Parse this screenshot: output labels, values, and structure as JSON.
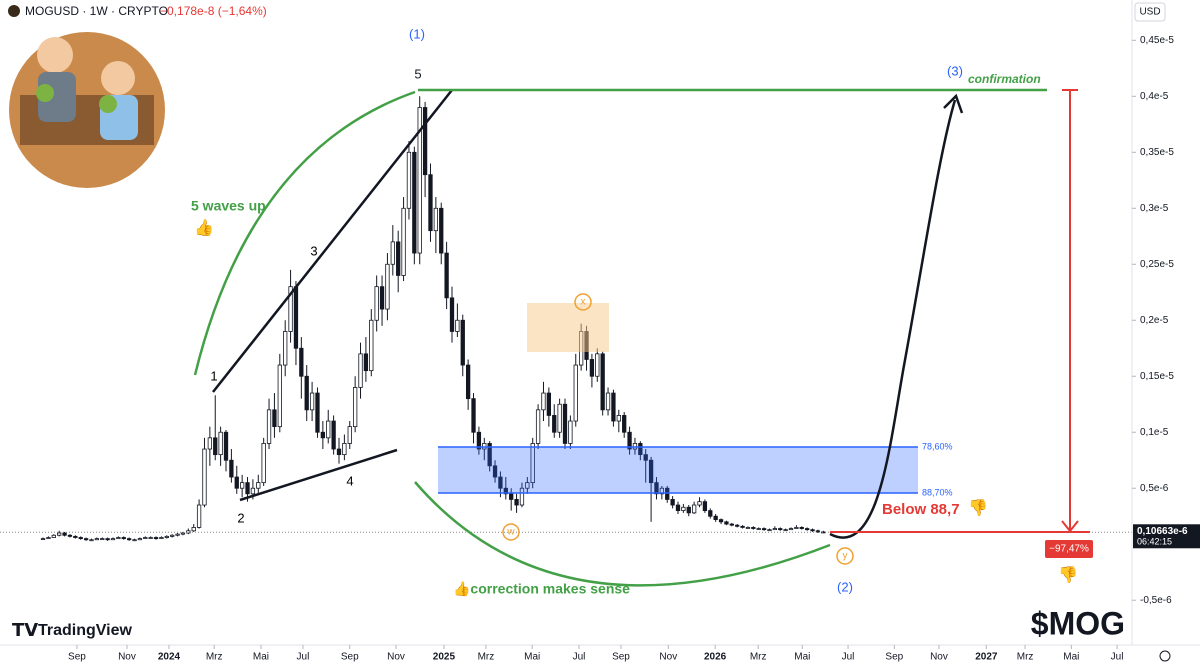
{
  "header": {
    "symbol": "MOGUSD · 1W · CRYPTO",
    "change": "−0,178e-8 (−1,64%)",
    "currency": "USD",
    "brand": "TradingView"
  },
  "chart_data": {
    "type": "candlestick",
    "up_color": "#ffffff",
    "down_color": "#131722",
    "grid": false,
    "ylim": [
      -9e-07,
      4.86e-06
    ],
    "yticks": [
      {
        "value": 4.5e-06,
        "label": "0,45e-5"
      },
      {
        "value": 4e-06,
        "label": "0,4e-5"
      },
      {
        "value": 3.5e-06,
        "label": "0,35e-5"
      },
      {
        "value": 3e-06,
        "label": "0,3e-5"
      },
      {
        "value": 2.5e-06,
        "label": "0,25e-5"
      },
      {
        "value": 2e-06,
        "label": "0,2e-5"
      },
      {
        "value": 1.5e-06,
        "label": "0,15e-5"
      },
      {
        "value": 1e-06,
        "label": "0,1e-5"
      },
      {
        "value": 5e-07,
        "label": "0,5e-6"
      },
      {
        "value": -5e-07,
        "label": "-0,5e-6"
      }
    ],
    "xlim": [
      -8,
      202
    ],
    "xticks": [
      {
        "value": 6.3,
        "label": "Sep"
      },
      {
        "value": 15.6,
        "label": "Nov"
      },
      {
        "value": 23.4,
        "label": "2024"
      },
      {
        "value": 31.8,
        "label": "Mrz"
      },
      {
        "value": 40.5,
        "label": "Mai"
      },
      {
        "value": 48.3,
        "label": "Jul"
      },
      {
        "value": 57,
        "label": "Sep"
      },
      {
        "value": 65.6,
        "label": "Nov"
      },
      {
        "value": 74.5,
        "label": "2025"
      },
      {
        "value": 82.3,
        "label": "Mrz"
      },
      {
        "value": 90.9,
        "label": "Mai"
      },
      {
        "value": 99.6,
        "label": "Jul"
      },
      {
        "value": 107.4,
        "label": "Sep"
      },
      {
        "value": 116.2,
        "label": "Nov"
      },
      {
        "value": 124.9,
        "label": "2026"
      },
      {
        "value": 132.9,
        "label": "Mrz"
      },
      {
        "value": 141.1,
        "label": "Mai"
      },
      {
        "value": 149.6,
        "label": "Jul"
      },
      {
        "value": 158.2,
        "label": "Sep"
      },
      {
        "value": 166.5,
        "label": "Nov"
      },
      {
        "value": 175.3,
        "label": "2027"
      },
      {
        "value": 182.5,
        "label": "Mrz"
      },
      {
        "value": 191.1,
        "label": "Mai"
      },
      {
        "value": 199.6,
        "label": "Jul"
      }
    ],
    "series": [
      {
        "values": [
          [
            5e-08,
            6e-08,
            4e-08,
            5e-08
          ],
          [
            5e-08,
            7e-08,
            5e-08,
            6e-08
          ],
          [
            6e-08,
            9e-08,
            6e-08,
            8e-08
          ],
          [
            8e-08,
            1.2e-07,
            7e-08,
            1e-07
          ],
          [
            1e-07,
            1.1e-07,
            7e-08,
            8e-08
          ],
          [
            8e-08,
            9e-08,
            6e-08,
            7e-08
          ],
          [
            7e-08,
            8e-08,
            5e-08,
            6e-08
          ],
          [
            6e-08,
            7e-08,
            4e-08,
            5e-08
          ],
          [
            5e-08,
            6e-08,
            3e-08,
            4e-08
          ],
          [
            4e-08,
            5e-08,
            3e-08,
            4e-08
          ],
          [
            4e-08,
            6e-08,
            4e-08,
            5e-08
          ],
          [
            5e-08,
            6e-08,
            4e-08,
            5e-08
          ],
          [
            5e-08,
            6e-08,
            3e-08,
            4e-08
          ],
          [
            4e-08,
            6e-08,
            4e-08,
            5e-08
          ],
          [
            5e-08,
            7e-08,
            5e-08,
            6e-08
          ],
          [
            6e-08,
            7e-08,
            4e-08,
            5e-08
          ],
          [
            5e-08,
            6e-08,
            3e-08,
            4e-08
          ],
          [
            4e-08,
            5e-08,
            3e-08,
            4e-08
          ],
          [
            4e-08,
            6e-08,
            4e-08,
            5e-08
          ],
          [
            5e-08,
            7e-08,
            5e-08,
            6e-08
          ],
          [
            6e-08,
            7e-08,
            5e-08,
            6e-08
          ],
          [
            6e-08,
            7e-08,
            4e-08,
            5e-08
          ],
          [
            5e-08,
            7e-08,
            5e-08,
            6e-08
          ],
          [
            6e-08,
            8e-08,
            5e-08,
            7e-08
          ],
          [
            7e-08,
            9e-08,
            6e-08,
            8e-08
          ],
          [
            8e-08,
            1e-07,
            7e-08,
            9e-08
          ],
          [
            9e-08,
            1.1e-07,
            8e-08,
            1e-07
          ],
          [
            1e-07,
            1.4e-07,
            9e-08,
            1.2e-07
          ],
          [
            1.2e-07,
            1.8e-07,
            1.1e-07,
            1.5e-07
          ],
          [
            1.5e-07,
            4e-07,
            1.4e-07,
            3.5e-07
          ],
          [
            3.5e-07,
            9.5e-07,
            3.3e-07,
            8.5e-07
          ],
          [
            8.5e-07,
            1.05e-06,
            7e-07,
            9.5e-07
          ],
          [
            9.5e-07,
            1.33e-06,
            7.5e-07,
            8e-07
          ],
          [
            8e-07,
            1.05e-06,
            7e-07,
            1e-06
          ],
          [
            1e-06,
            1.02e-06,
            6.5e-07,
            7.5e-07
          ],
          [
            7.5e-07,
            8.5e-07,
            5.5e-07,
            6e-07
          ],
          [
            6e-07,
            7e-07,
            4.5e-07,
            5e-07
          ],
          [
            5e-07,
            6.2e-07,
            4.2e-07,
            5.5e-07
          ],
          [
            5.5e-07,
            6e-07,
            3.8e-07,
            4.5e-07
          ],
          [
            4.5e-07,
            5.8e-07,
            4e-07,
            5e-07
          ],
          [
            5e-07,
            6.2e-07,
            4.5e-07,
            5.5e-07
          ],
          [
            5.5e-07,
            9.5e-07,
            5.2e-07,
            9e-07
          ],
          [
            9e-07,
            1.3e-06,
            8.5e-07,
            1.2e-06
          ],
          [
            1.2e-06,
            1.35e-06,
            9.5e-07,
            1.05e-06
          ],
          [
            1.05e-06,
            1.7e-06,
            1e-06,
            1.6e-06
          ],
          [
            1.6e-06,
            2e-06,
            1.5e-06,
            1.9e-06
          ],
          [
            1.9e-06,
            2.45e-06,
            1.8e-06,
            2.3e-06
          ],
          [
            2.3e-06,
            2.35e-06,
            1.6e-06,
            1.75e-06
          ],
          [
            1.75e-06,
            1.85e-06,
            1.3e-06,
            1.5e-06
          ],
          [
            1.5e-06,
            1.6e-06,
            1.1e-06,
            1.2e-06
          ],
          [
            1.2e-06,
            1.45e-06,
            1.1e-06,
            1.35e-06
          ],
          [
            1.35e-06,
            1.4e-06,
            9.5e-07,
            1e-06
          ],
          [
            1e-06,
            1.1e-06,
            8.5e-07,
            9.5e-07
          ],
          [
            9.5e-07,
            1.2e-06,
            9e-07,
            1.1e-06
          ],
          [
            1.1e-06,
            1.15e-06,
            8e-07,
            8.5e-07
          ],
          [
            8.5e-07,
            9.5e-07,
            7.2e-07,
            8e-07
          ],
          [
            8e-07,
            9.8e-07,
            7.5e-07,
            9e-07
          ],
          [
            9e-07,
            1.1e-06,
            8.5e-07,
            1.05e-06
          ],
          [
            1.05e-06,
            1.5e-06,
            1e-06,
            1.4e-06
          ],
          [
            1.4e-06,
            1.8e-06,
            1.3e-06,
            1.7e-06
          ],
          [
            1.7e-06,
            1.85e-06,
            1.45e-06,
            1.55e-06
          ],
          [
            1.55e-06,
            2.1e-06,
            1.5e-06,
            2e-06
          ],
          [
            2e-06,
            2.4e-06,
            1.9e-06,
            2.3e-06
          ],
          [
            2.3e-06,
            2.4e-06,
            1.95e-06,
            2.1e-06
          ],
          [
            2.1e-06,
            2.6e-06,
            2e-06,
            2.5e-06
          ],
          [
            2.5e-06,
            2.85e-06,
            2.4e-06,
            2.7e-06
          ],
          [
            2.7e-06,
            2.8e-06,
            2.25e-06,
            2.4e-06
          ],
          [
            2.4e-06,
            3.1e-06,
            2.35e-06,
            3e-06
          ],
          [
            3e-06,
            3.6e-06,
            2.9e-06,
            3.5e-06
          ],
          [
            3.5e-06,
            3.55e-06,
            2.5e-06,
            2.6e-06
          ],
          [
            2.6e-06,
            4e-06,
            2.5e-06,
            3.9e-06
          ],
          [
            3.9e-06,
            3.95e-06,
            3.1e-06,
            3.3e-06
          ],
          [
            3.3e-06,
            3.4e-06,
            2.7e-06,
            2.8e-06
          ],
          [
            2.8e-06,
            3.1e-06,
            2.6e-06,
            3e-06
          ],
          [
            3e-06,
            3.05e-06,
            2.5e-06,
            2.6e-06
          ],
          [
            2.6e-06,
            2.7e-06,
            2.1e-06,
            2.2e-06
          ],
          [
            2.2e-06,
            2.3e-06,
            1.8e-06,
            1.9e-06
          ],
          [
            1.9e-06,
            2.15e-06,
            1.85e-06,
            2e-06
          ],
          [
            2e-06,
            2.05e-06,
            1.5e-06,
            1.6e-06
          ],
          [
            1.6e-06,
            1.65e-06,
            1.2e-06,
            1.3e-06
          ],
          [
            1.3e-06,
            1.35e-06,
            9e-07,
            1e-06
          ],
          [
            1e-06,
            1.05e-06,
            8e-07,
            8.5e-07
          ],
          [
            8.5e-07,
            9.5e-07,
            7.5e-07,
            9e-07
          ],
          [
            9e-07,
            9.2e-07,
            6.5e-07,
            7e-07
          ],
          [
            7e-07,
            7.5e-07,
            5.5e-07,
            6e-07
          ],
          [
            6e-07,
            6.5e-07,
            4.2e-07,
            5e-07
          ],
          [
            5e-07,
            6e-07,
            4e-07,
            4.5e-07
          ],
          [
            4.5e-07,
            5e-07,
            3e-07,
            4e-07
          ],
          [
            4e-07,
            4.5e-07,
            2.8e-07,
            3.5e-07
          ],
          [
            3.5e-07,
            5.5e-07,
            3.3e-07,
            5e-07
          ],
          [
            5e-07,
            6e-07,
            4.5e-07,
            5.5e-07
          ],
          [
            5.5e-07,
            9.5e-07,
            5e-07,
            9e-07
          ],
          [
            9e-07,
            1.25e-06,
            8.5e-07,
            1.2e-06
          ],
          [
            1.2e-06,
            1.45e-06,
            1.1e-06,
            1.35e-06
          ],
          [
            1.35e-06,
            1.4e-06,
            1.05e-06,
            1.15e-06
          ],
          [
            1.15e-06,
            1.25e-06,
            9.5e-07,
            1e-06
          ],
          [
            1e-06,
            1.3e-06,
            9.5e-07,
            1.25e-06
          ],
          [
            1.25e-06,
            1.3e-06,
            8.5e-07,
            9e-07
          ],
          [
            9e-07,
            1.15e-06,
            8.5e-07,
            1.1e-06
          ],
          [
            1.1e-06,
            1.7e-06,
            1.05e-06,
            1.6e-06
          ],
          [
            1.6e-06,
            1.97e-06,
            1.55e-06,
            1.9e-06
          ],
          [
            1.9e-06,
            1.95e-06,
            1.55e-06,
            1.65e-06
          ],
          [
            1.65e-06,
            1.7e-06,
            1.4e-06,
            1.5e-06
          ],
          [
            1.5e-06,
            1.75e-06,
            1.45e-06,
            1.7e-06
          ],
          [
            1.7e-06,
            1.72e-06,
            1.15e-06,
            1.2e-06
          ],
          [
            1.2e-06,
            1.4e-06,
            1.15e-06,
            1.35e-06
          ],
          [
            1.35e-06,
            1.38e-06,
            1.05e-06,
            1.1e-06
          ],
          [
            1.1e-06,
            1.2e-06,
            1e-06,
            1.15e-06
          ],
          [
            1.15e-06,
            1.18e-06,
            9.5e-07,
            1e-06
          ],
          [
            1e-06,
            1.05e-06,
            8e-07,
            8.5e-07
          ],
          [
            8.5e-07,
            9.5e-07,
            8e-07,
            9e-07
          ],
          [
            9e-07,
            9.2e-07,
            7.5e-07,
            8e-07
          ],
          [
            8e-07,
            8.5e-07,
            5.5e-07,
            7.5e-07
          ],
          [
            7.5e-07,
            7.8e-07,
            2e-07,
            5.5e-07
          ],
          [
            5.5e-07,
            6e-07,
            4e-07,
            4.5e-07
          ],
          [
            4.5e-07,
            5.2e-07,
            4e-07,
            5e-07
          ],
          [
            5e-07,
            5.2e-07,
            3.7e-07,
            4e-07
          ],
          [
            4e-07,
            4.3e-07,
            3.2e-07,
            3.5e-07
          ],
          [
            3.5e-07,
            3.8e-07,
            2.7e-07,
            3e-07
          ],
          [
            3e-07,
            3.6e-07,
            2.8e-07,
            3.3e-07
          ],
          [
            3.3e-07,
            3.5e-07,
            2.5e-07,
            2.8e-07
          ],
          [
            2.8e-07,
            3.8e-07,
            2.7e-07,
            3.5e-07
          ],
          [
            3.5e-07,
            4.2e-07,
            3.3e-07,
            3.8e-07
          ],
          [
            3.8e-07,
            4e-07,
            2.8e-07,
            3e-07
          ],
          [
            3e-07,
            3.2e-07,
            2.3e-07,
            2.5e-07
          ],
          [
            2.5e-07,
            2.7e-07,
            2e-07,
            2.2e-07
          ],
          [
            2.2e-07,
            2.3e-07,
            1.8e-07,
            2e-07
          ],
          [
            2e-07,
            2.1e-07,
            1.7e-07,
            1.8e-07
          ],
          [
            1.8e-07,
            1.9e-07,
            1.6e-07,
            1.7e-07
          ],
          [
            1.7e-07,
            1.8e-07,
            1.5e-07,
            1.6e-07
          ],
          [
            1.6e-07,
            1.7e-07,
            1.4e-07,
            1.5e-07
          ],
          [
            1.5e-07,
            1.6e-07,
            1.4e-07,
            1.5e-07
          ],
          [
            1.5e-07,
            1.6e-07,
            1.3e-07,
            1.4e-07
          ],
          [
            1.4e-07,
            1.5e-07,
            1.3e-07,
            1.4e-07
          ],
          [
            1.4e-07,
            1.5e-07,
            1.2e-07,
            1.3e-07
          ],
          [
            1.3e-07,
            1.4e-07,
            1.2e-07,
            1.3e-07
          ],
          [
            1.3e-07,
            1.6e-07,
            1.3e-07,
            1.4e-07
          ],
          [
            1.4e-07,
            1.5e-07,
            1.2e-07,
            1.3e-07
          ],
          [
            1.3e-07,
            1.4e-07,
            1.2e-07,
            1.3e-07
          ],
          [
            1.3e-07,
            1.5e-07,
            1.3e-07,
            1.4e-07
          ],
          [
            1.4e-07,
            1.7e-07,
            1.4e-07,
            1.5e-07
          ],
          [
            1.5e-07,
            1.6e-07,
            1.3e-07,
            1.4e-07
          ],
          [
            1.4e-07,
            1.5e-07,
            1.2e-07,
            1.3e-07
          ],
          [
            1.3e-07,
            1.4e-07,
            1.1e-07,
            1.2e-07
          ],
          [
            1.2e-07,
            1.3e-07,
            1e-07,
            1.1e-07
          ],
          [
            1.1e-07,
            1.2e-07,
            1e-07,
            1.0663e-07
          ]
        ]
      }
    ],
    "last_price_label": "0,10663e-6",
    "countdown": "06:42:15",
    "annotations": {
      "wave1_label": "(1)",
      "wave5_top": "5",
      "wave3_label": "(3)",
      "confirmation": "confirmation",
      "waves_up": "5 waves up",
      "thumb_up": "👍",
      "sub1": "1",
      "sub2": "2",
      "sub3": "3",
      "sub4": "4",
      "x": "x",
      "w": "w",
      "y": "y",
      "wave2_label": "(2)",
      "fib_high": "78,60%",
      "fib_low": "88,70%",
      "below": "Below 88,7",
      "thumb_down": "👎",
      "correction": "👍correction makes sense",
      "drop": "−97,47%",
      "ticker": "$MOG"
    }
  }
}
